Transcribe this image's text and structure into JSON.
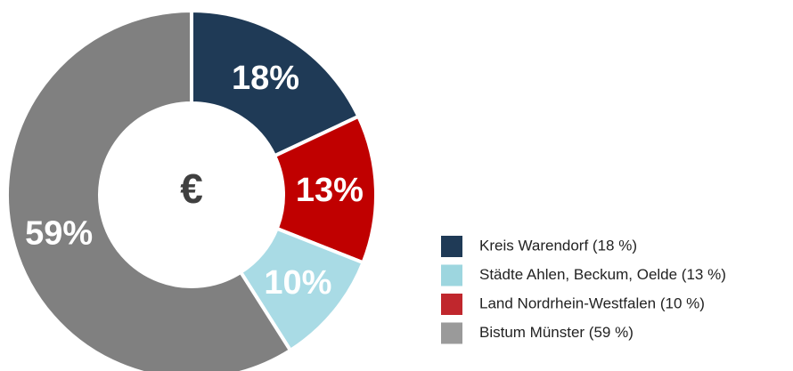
{
  "chart_data": {
    "type": "pie",
    "donut": true,
    "center_label": "€",
    "values": [
      18,
      13,
      10,
      59
    ],
    "value_labels": [
      "18%",
      "13%",
      "10%",
      "59%"
    ],
    "colors": [
      "#1f3a56",
      "#c00000",
      "#a9dbe5",
      "#808080"
    ],
    "legend": [
      {
        "label": "Kreis Warendorf (18 %)",
        "color": "#1f3a56"
      },
      {
        "label": "Städte Ahlen, Beckum, Oelde (13 %)",
        "color": "#9dd6df"
      },
      {
        "label": "Land Nordrhein-Westfalen (10 %)",
        "color": "#c0272d"
      },
      {
        "label": "Bistum Münster (59 %)",
        "color": "#9a9a9a"
      }
    ]
  }
}
